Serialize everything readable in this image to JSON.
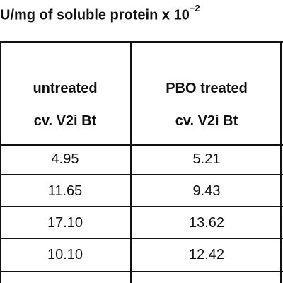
{
  "title": "U/mg of soluble protein x 10",
  "title_exponent": "−2",
  "table": {
    "header": [
      [
        "untreated",
        "cv. V2i Bt"
      ],
      [
        "PBO treated",
        "cv. V2i Bt"
      ]
    ],
    "rows": [
      [
        "4.95",
        "5.21"
      ],
      [
        "11.65",
        "9.43"
      ],
      [
        "17.10",
        "13.62"
      ],
      [
        "10.10",
        "12.42"
      ]
    ]
  }
}
